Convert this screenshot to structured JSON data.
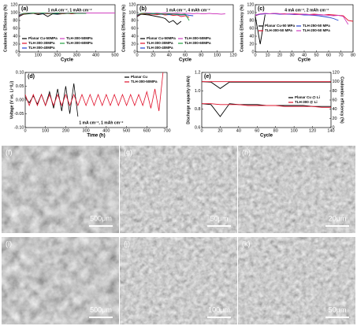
{
  "chart_data": [
    {
      "type": "line",
      "panel_label": "(a)",
      "annotation": "1 mA cm⁻², 1 mAh cm⁻²",
      "xlabel": "Cycle",
      "ylabel": "Coulombic Efficiency (%)",
      "xlim": [
        0,
        500
      ],
      "xticks": [
        0,
        100,
        200,
        300,
        400,
        500
      ],
      "ylim": [
        0,
        120
      ],
      "yticks": [
        0,
        20,
        40,
        60,
        80,
        100,
        120
      ],
      "legend": "lower left",
      "x": [
        0,
        25,
        50,
        75,
        100,
        125,
        150,
        175,
        200,
        225,
        250,
        275,
        300,
        325,
        350,
        375,
        400,
        425,
        450,
        475,
        500
      ],
      "series": [
        {
          "name": "Planar Cu-50MPa",
          "color": "#000000",
          "values": [
            90,
            96,
            97,
            98,
            95,
            97,
            90,
            97,
            96,
            97,
            98,
            null,
            null,
            null,
            null,
            null,
            null,
            null,
            null,
            null,
            null
          ]
        },
        {
          "name": "TLH-300-30MPa",
          "color": "#e0102a",
          "values": [
            92,
            97,
            98,
            98,
            97,
            98,
            97,
            98,
            98,
            97,
            98,
            97,
            98,
            null,
            null,
            null,
            null,
            null,
            null,
            null,
            null
          ]
        },
        {
          "name": "TLH-300-40MPa",
          "color": "#2040d0",
          "values": [
            93,
            98,
            98,
            99,
            98,
            98,
            99,
            98,
            98,
            99,
            98,
            99,
            98,
            98,
            null,
            null,
            null,
            null,
            null,
            null,
            null
          ]
        },
        {
          "name": "TLH-300-50MPa",
          "color": "#d040c0",
          "values": [
            95,
            98,
            99,
            99,
            99,
            99,
            99,
            99,
            99,
            99,
            99,
            99,
            99,
            99,
            99,
            99,
            99,
            99,
            99,
            99,
            99
          ]
        },
        {
          "name": "TLH-300-60MPa",
          "color": "#20a040",
          "values": [
            94,
            98,
            98,
            99,
            98,
            99,
            98,
            98,
            99,
            98,
            98,
            99,
            98,
            98,
            98,
            null,
            null,
            null,
            null,
            null,
            null
          ]
        }
      ]
    },
    {
      "type": "line",
      "panel_label": "(b)",
      "annotation": "1 mA cm⁻², 4 mAh cm⁻²",
      "xlabel": "Cycle",
      "ylabel": "Coulombic Efficiency (%)",
      "xlim": [
        0,
        120
      ],
      "xticks": [
        0,
        20,
        40,
        60,
        80,
        100,
        120
      ],
      "ylim": [
        0,
        120
      ],
      "yticks": [
        0,
        20,
        40,
        60,
        80,
        100,
        120
      ],
      "legend": "lower left",
      "x": [
        0,
        5,
        10,
        15,
        20,
        25,
        30,
        35,
        40,
        45,
        50,
        55,
        60,
        65,
        70,
        75,
        80,
        85,
        90,
        95,
        100,
        105,
        110,
        115,
        120
      ],
      "series": [
        {
          "name": "Planar Cu-50MPa",
          "color": "#000000",
          "values": [
            90,
            96,
            95,
            94,
            92,
            90,
            88,
            85,
            75,
            80,
            70,
            78,
            null,
            null,
            null,
            null,
            null,
            null,
            null,
            null,
            null,
            null,
            null,
            null,
            null
          ]
        },
        {
          "name": "TLH-300-30MPa",
          "color": "#e0102a",
          "values": [
            92,
            97,
            97,
            96,
            96,
            95,
            96,
            94,
            95,
            93,
            94,
            90,
            92,
            88,
            null,
            null,
            null,
            null,
            null,
            null,
            null,
            null,
            null,
            null,
            null
          ]
        },
        {
          "name": "TLH-300-40MPa",
          "color": "#2040d0",
          "values": [
            93,
            98,
            98,
            97,
            97,
            97,
            96,
            96,
            95,
            96,
            95,
            94,
            95,
            93,
            92,
            null,
            null,
            null,
            null,
            null,
            null,
            null,
            null,
            null,
            null
          ]
        },
        {
          "name": "TLH-300-50MPa",
          "color": "#d040c0",
          "values": [
            95,
            98,
            99,
            99,
            98,
            99,
            98,
            99,
            98,
            98,
            99,
            98,
            98,
            98,
            97,
            98,
            97,
            97,
            98,
            97,
            97,
            96,
            97,
            null,
            null
          ]
        },
        {
          "name": "TLH-300-60MPa",
          "color": "#20a040",
          "values": [
            94,
            98,
            98,
            97,
            98,
            97,
            97,
            96,
            97,
            96,
            96,
            95,
            96,
            80,
            null,
            null,
            null,
            null,
            null,
            null,
            null,
            null,
            null,
            null,
            null
          ]
        }
      ]
    },
    {
      "type": "line",
      "panel_label": "(c)",
      "annotation": "4 mA cm⁻², 2 mAh cm⁻²",
      "xlabel": "Cycle",
      "ylabel": "Coulombic Efficiency (%)",
      "xlim": [
        0,
        80
      ],
      "xticks": [
        0,
        10,
        20,
        30,
        40,
        50,
        60,
        70,
        80
      ],
      "ylim": [
        0,
        120
      ],
      "yticks": [
        0,
        20,
        40,
        60,
        80,
        100,
        120
      ],
      "legend": "center left",
      "x": [
        0,
        4,
        8,
        12,
        16,
        20,
        24,
        28,
        32,
        36,
        40,
        44,
        48,
        52,
        56,
        60,
        64,
        68,
        72,
        76,
        80
      ],
      "series": [
        {
          "name": "Planar Cu-50 MPa",
          "color": "#000000",
          "values": [
            90,
            20,
            95,
            null,
            null,
            null,
            null,
            null,
            null,
            null,
            null,
            null,
            null,
            null,
            null,
            null,
            null,
            null,
            null,
            null,
            null
          ]
        },
        {
          "name": "TLH-300-50 MPa",
          "color": "#e0102a",
          "values": [
            92,
            96,
            97,
            97,
            98,
            97,
            97,
            96,
            97,
            96,
            96,
            95,
            96,
            95,
            94,
            95,
            94,
            93,
            92,
            80,
            78
          ]
        },
        {
          "name": "TLH-250-50 MPa",
          "color": "#2040d0",
          "values": [
            93,
            96,
            97,
            97,
            97,
            96,
            96,
            96,
            95,
            95,
            94,
            94,
            93,
            92,
            90,
            88,
            85,
            80,
            null,
            null,
            null
          ]
        },
        {
          "name": "TLH-200-50 MPa",
          "color": "#d040c0",
          "values": [
            94,
            97,
            98,
            97,
            98,
            97,
            96,
            97,
            96,
            95,
            96,
            95,
            94,
            95,
            94,
            93,
            92,
            93,
            90,
            70,
            null
          ]
        }
      ]
    },
    {
      "type": "line",
      "panel_label": "(d)",
      "annotation": "1 mA cm⁻², 1 mAh cm⁻²",
      "xlabel": "Time (h)",
      "ylabel": "Voltage (V vs. Li⁺/Li)",
      "xlim": [
        0,
        700
      ],
      "xticks": [
        0,
        100,
        200,
        300,
        400,
        500,
        600,
        700
      ],
      "ylim": [
        -0.1,
        0.1
      ],
      "yticks": [
        {
          "value": -0.1,
          "label": "-0.10"
        },
        {
          "value": -0.05,
          "label": "-0.05"
        },
        {
          "value": 0,
          "label": "0.00"
        },
        {
          "value": 0.05,
          "label": "0.05"
        },
        {
          "value": 0.1,
          "label": "0.10"
        }
      ],
      "legend": "upper right",
      "x": [
        0,
        20,
        40,
        60,
        80,
        100,
        120,
        140,
        160,
        180,
        200,
        220,
        240,
        260,
        280,
        300,
        320,
        340,
        360,
        380,
        400,
        420,
        440,
        460,
        480,
        500,
        520,
        540,
        560,
        580,
        600,
        620,
        640,
        660,
        680,
        700
      ],
      "series": [
        {
          "name": "Planar Cu",
          "color": "#000000",
          "values": [
            0.01,
            -0.01,
            0.015,
            -0.015,
            0.02,
            -0.02,
            0.03,
            -0.03,
            0.04,
            -0.04,
            0.05,
            -0.05,
            0.06,
            -0.06,
            null,
            null,
            null,
            null,
            null,
            null,
            null,
            null,
            null,
            null,
            null,
            null,
            null,
            null,
            null,
            null,
            null,
            null,
            null,
            null,
            null,
            null
          ]
        },
        {
          "name": "TLH-300-50MPa",
          "color": "#e0102a",
          "values": [
            0.02,
            -0.02,
            0.02,
            -0.02,
            0.02,
            -0.02,
            0.02,
            -0.02,
            0.02,
            -0.02,
            0.02,
            -0.02,
            0.02,
            -0.02,
            0.02,
            -0.02,
            0.02,
            -0.02,
            0.02,
            -0.02,
            0.02,
            -0.02,
            0.02,
            -0.02,
            0.02,
            -0.02,
            0.02,
            -0.02,
            0.02,
            -0.02,
            0.03,
            -0.03,
            0.04,
            -0.04,
            0.1,
            null
          ]
        }
      ]
    },
    {
      "type": "line",
      "panel_label": "(e)",
      "xlabel": "Cycle",
      "ylabel": "Discharge capacity (mAh)",
      "y2label": "Coulombic efficiency (%)",
      "xlim": [
        0,
        140
      ],
      "xticks": [
        0,
        20,
        40,
        60,
        80,
        100,
        120,
        140
      ],
      "ylim": [
        0.6,
        1.2
      ],
      "yticks": [
        0.6,
        0.8,
        {
          "value": 1,
          "label": "1.0"
        },
        1.2
      ],
      "y2lim": [
        0,
        120
      ],
      "y2ticks": [
        0,
        20,
        40,
        60,
        80,
        100,
        120
      ],
      "legend": "center right",
      "x": [
        0,
        10,
        20,
        30,
        40,
        50,
        60,
        70,
        80,
        90,
        100,
        110,
        120,
        130,
        140
      ],
      "series": [
        {
          "name": "Planar Cu @ Li",
          "color": "#000000",
          "values": [
            0.86,
            0.85,
            0.72,
            0.86,
            0.85,
            0.85,
            0.85,
            0.84,
            0.84,
            0.84,
            0.84,
            0.84,
            0.83,
            0.83,
            0.83
          ]
        },
        {
          "name": "TLH-300 @ Li",
          "color": "#e0102a",
          "values": [
            0.86,
            0.86,
            0.85,
            0.85,
            0.85,
            0.84,
            0.84,
            0.84,
            0.84,
            0.83,
            0.83,
            0.83,
            0.83,
            0.82,
            0.82
          ]
        },
        {
          "color": "#000000",
          "axis": "y2",
          "values": [
            100,
            99,
            85,
            99,
            99,
            99,
            99,
            99,
            99,
            99,
            99,
            99,
            99,
            99,
            99
          ]
        },
        {
          "color": "#e0102a",
          "axis": "y2",
          "values": [
            100,
            100,
            100,
            100,
            100,
            100,
            100,
            100,
            100,
            100,
            100,
            100,
            100,
            100,
            100
          ]
        }
      ]
    }
  ],
  "images": [
    {
      "label": "(f)",
      "scale_bar": "500μm"
    },
    {
      "label": "(g)",
      "scale_bar": "50μm"
    },
    {
      "label": "(h)",
      "scale_bar": "20μm"
    },
    {
      "label": "(i)",
      "scale_bar": "500μm"
    },
    {
      "label": "(j)",
      "scale_bar": "100μm"
    },
    {
      "label": "(k)",
      "scale_bar": "50μm"
    }
  ]
}
